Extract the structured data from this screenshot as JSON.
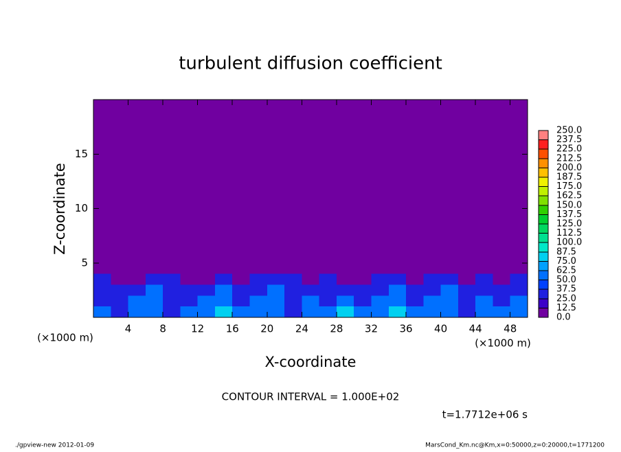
{
  "chart_data": {
    "type": "heatmap",
    "title": "turbulent diffusion coefficient",
    "x_label": "X-coordinate",
    "y_label": "Z-coordinate",
    "x_unit": "(×1000 m)",
    "y_unit": "(×1000 m)",
    "contour_note": "CONTOUR INTERVAL = 1.000E+02",
    "time_label": "t=1.7712e+06 s",
    "footer_left": "./gpview-new  2012-01-09",
    "footer_right": "MarsCond_Km.nc@Km,x=0:50000,z=0:20000,t=1771200",
    "xlim": [
      0,
      50
    ],
    "ylim": [
      0,
      20
    ],
    "xticks": [
      4,
      8,
      12,
      16,
      20,
      24,
      28,
      32,
      36,
      40,
      44,
      48
    ],
    "yticks": [
      5,
      10,
      15
    ],
    "x_bins": [
      0,
      2,
      4,
      6,
      8,
      10,
      12,
      14,
      16,
      18,
      20,
      22,
      24,
      26,
      28,
      30,
      32,
      34,
      36,
      38,
      40,
      42,
      44,
      46,
      48,
      50
    ],
    "y_bins": [
      0,
      1,
      2,
      3,
      4,
      20
    ],
    "values": [
      [
        50,
        37,
        62,
        50,
        37,
        50,
        62,
        75,
        50,
        62,
        50,
        37,
        62,
        50,
        75,
        50,
        62,
        87,
        50,
        62,
        50,
        37,
        62,
        50,
        62
      ],
      [
        37,
        25,
        50,
        62,
        37,
        25,
        50,
        62,
        37,
        50,
        62,
        37,
        50,
        37,
        50,
        25,
        62,
        50,
        37,
        50,
        62,
        25,
        50,
        37,
        50
      ],
      [
        25,
        25,
        37,
        50,
        37,
        25,
        37,
        50,
        25,
        37,
        50,
        37,
        25,
        37,
        37,
        25,
        37,
        50,
        25,
        37,
        50,
        25,
        37,
        25,
        37
      ],
      [
        25,
        12,
        12,
        25,
        25,
        12,
        12,
        25,
        12,
        25,
        37,
        25,
        12,
        25,
        12,
        12,
        25,
        25,
        12,
        25,
        25,
        12,
        25,
        12,
        25
      ],
      [
        0,
        0,
        0,
        0,
        0,
        0,
        0,
        0,
        0,
        0,
        0,
        0,
        0,
        0,
        0,
        0,
        0,
        0,
        0,
        0,
        0,
        0,
        0,
        0,
        0
      ]
    ],
    "levels": [
      {
        "value": 0,
        "label": "0.0"
      },
      12.5,
      25,
      37.5,
      50,
      62.5,
      75,
      87.5,
      100,
      112.5,
      125,
      137.5,
      150,
      162.5,
      175,
      187.5,
      200,
      212.5,
      225,
      237.5,
      {
        "value": 250,
        "label": "250.0"
      }
    ],
    "level_labels": [
      "0.0",
      "12.5",
      "25.0",
      "37.5",
      "50.0",
      "62.5",
      "75.0",
      "87.5",
      "100.0",
      "112.5",
      "125.0",
      "137.5",
      "150.0",
      "162.5",
      "175.0",
      "187.5",
      "200.0",
      "212.5",
      "225.0",
      "237.5",
      "250.0"
    ],
    "colors": [
      "#7000a0",
      "#3c00c8",
      "#2020e0",
      "#0040ff",
      "#0070ff",
      "#00a0ff",
      "#00d0f0",
      "#00e8c8",
      "#00e090",
      "#00d860",
      "#00d030",
      "#30d000",
      "#80e000",
      "#c0f000",
      "#f0f000",
      "#ffc000",
      "#ff9000",
      "#ff5000",
      "#ff2020",
      "#ff8080"
    ]
  }
}
